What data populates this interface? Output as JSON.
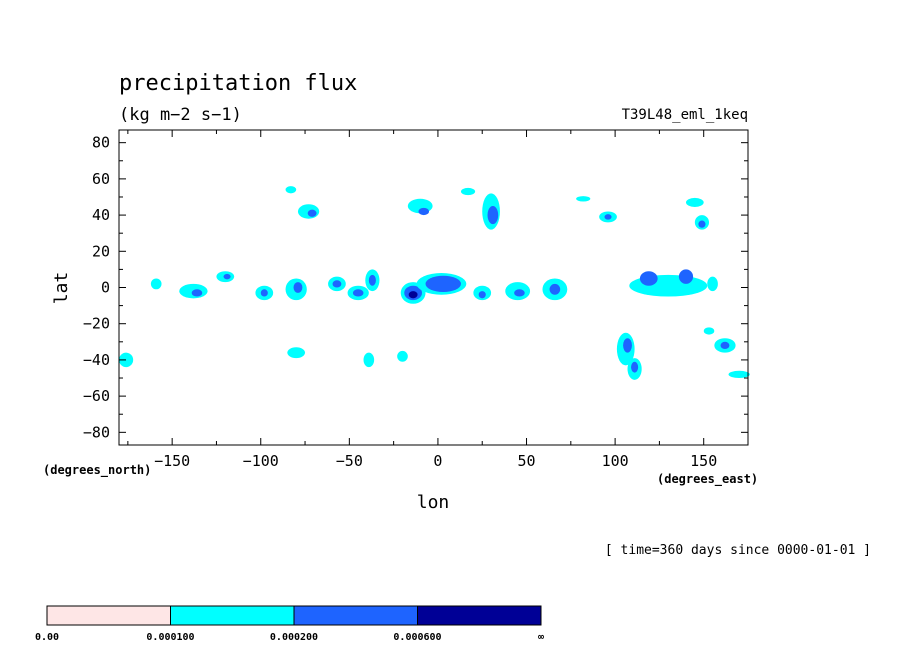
{
  "chart_data": {
    "type": "heatmap",
    "title": "precipitation flux",
    "units": "(kg m−2 s−1)",
    "dataset": "T39L48_eml_1keq",
    "xlabel": "lon",
    "ylabel": "lat",
    "x_unit": "(degrees_east)",
    "y_unit": "(degrees_north)",
    "time_label": "[ time=360 days since 0000-01-01 ]",
    "xlim": [
      -180,
      175
    ],
    "ylim": [
      -87,
      87
    ],
    "x_ticks": [
      -150,
      -100,
      -50,
      0,
      50,
      100,
      150
    ],
    "x_tick_labels": [
      "−150",
      "−100",
      "−50",
      "0",
      "50",
      "100",
      "150"
    ],
    "y_ticks": [
      80,
      60,
      40,
      20,
      0,
      -20,
      -40,
      -60,
      -80
    ],
    "y_tick_labels": [
      "80",
      "60",
      "40",
      "20",
      "0",
      "−20",
      "−40",
      "−60",
      "−80"
    ],
    "levels": [
      0.0,
      0.0001,
      0.0002,
      0.0006
    ],
    "level_labels": [
      "0.00",
      "0.000100",
      "0.000200",
      "0.000600",
      "∞"
    ],
    "level_colors": [
      "#fee6e6",
      "#00ffff",
      "#1e64ff",
      "#000096"
    ],
    "regions": [
      {
        "lon": -176,
        "lat": -40,
        "rlon": 4,
        "rlat": 4,
        "level": 1
      },
      {
        "lon": -159,
        "lat": 2,
        "rlon": 3,
        "rlat": 3,
        "level": 1
      },
      {
        "lon": -138,
        "lat": -2,
        "rlon": 8,
        "rlat": 4,
        "level": 1
      },
      {
        "lon": -136,
        "lat": -3,
        "rlon": 3,
        "rlat": 2,
        "level": 2
      },
      {
        "lon": -120,
        "lat": 6,
        "rlon": 5,
        "rlat": 3,
        "level": 1
      },
      {
        "lon": -119,
        "lat": 6,
        "rlon": 2,
        "rlat": 1.5,
        "level": 2
      },
      {
        "lon": -98,
        "lat": -3,
        "rlon": 5,
        "rlat": 4,
        "level": 1
      },
      {
        "lon": -98,
        "lat": -3,
        "rlon": 2,
        "rlat": 2,
        "level": 2
      },
      {
        "lon": -80,
        "lat": -1,
        "rlon": 6,
        "rlat": 6,
        "level": 1
      },
      {
        "lon": -79,
        "lat": 0,
        "rlon": 2.5,
        "rlat": 3,
        "level": 2
      },
      {
        "lon": -73,
        "lat": 42,
        "rlon": 6,
        "rlat": 4,
        "level": 1
      },
      {
        "lon": -71,
        "lat": 41,
        "rlon": 2.5,
        "rlat": 2,
        "level": 2
      },
      {
        "lon": -83,
        "lat": 54,
        "rlon": 3,
        "rlat": 2,
        "level": 1
      },
      {
        "lon": -57,
        "lat": 2,
        "rlon": 5,
        "rlat": 4,
        "level": 1
      },
      {
        "lon": -57,
        "lat": 2,
        "rlon": 2.5,
        "rlat": 2,
        "level": 2
      },
      {
        "lon": -45,
        "lat": -3,
        "rlon": 6,
        "rlat": 4,
        "level": 1
      },
      {
        "lon": -45,
        "lat": -3,
        "rlon": 3,
        "rlat": 2,
        "level": 2
      },
      {
        "lon": -37,
        "lat": 4,
        "rlon": 4,
        "rlat": 6,
        "level": 1
      },
      {
        "lon": -37,
        "lat": 4,
        "rlon": 2,
        "rlat": 3,
        "level": 2
      },
      {
        "lon": -80,
        "lat": -36,
        "rlon": 5,
        "rlat": 3,
        "level": 1
      },
      {
        "lon": -39,
        "lat": -40,
        "rlon": 3,
        "rlat": 4,
        "level": 1
      },
      {
        "lon": -20,
        "lat": -38,
        "rlon": 3,
        "rlat": 3,
        "level": 1
      },
      {
        "lon": -14,
        "lat": -3,
        "rlon": 7,
        "rlat": 6,
        "level": 1
      },
      {
        "lon": -14,
        "lat": -3,
        "rlon": 5,
        "rlat": 4,
        "level": 2
      },
      {
        "lon": -14,
        "lat": -4,
        "rlon": 2.5,
        "rlat": 2,
        "level": 3
      },
      {
        "lon": 2,
        "lat": 2,
        "rlon": 14,
        "rlat": 6,
        "level": 1
      },
      {
        "lon": 3,
        "lat": 2,
        "rlon": 10,
        "rlat": 4.5,
        "level": 2
      },
      {
        "lon": -10,
        "lat": 45,
        "rlon": 7,
        "rlat": 4,
        "level": 1
      },
      {
        "lon": -8,
        "lat": 42,
        "rlon": 3,
        "rlat": 2,
        "level": 2
      },
      {
        "lon": 30,
        "lat": 42,
        "rlon": 5,
        "rlat": 10,
        "level": 1
      },
      {
        "lon": 31,
        "lat": 40,
        "rlon": 3,
        "rlat": 5,
        "level": 2
      },
      {
        "lon": 17,
        "lat": 53,
        "rlon": 4,
        "rlat": 2,
        "level": 1
      },
      {
        "lon": 25,
        "lat": -3,
        "rlon": 5,
        "rlat": 4,
        "level": 1
      },
      {
        "lon": 25,
        "lat": -4,
        "rlon": 2,
        "rlat": 2,
        "level": 2
      },
      {
        "lon": 45,
        "lat": -2,
        "rlon": 7,
        "rlat": 5,
        "level": 1
      },
      {
        "lon": 46,
        "lat": -3,
        "rlon": 3,
        "rlat": 2,
        "level": 2
      },
      {
        "lon": 66,
        "lat": -1,
        "rlon": 7,
        "rlat": 6,
        "level": 1
      },
      {
        "lon": 66,
        "lat": -1,
        "rlon": 3,
        "rlat": 3,
        "level": 2
      },
      {
        "lon": 96,
        "lat": 39,
        "rlon": 5,
        "rlat": 3,
        "level": 1
      },
      {
        "lon": 96,
        "lat": 39,
        "rlon": 2,
        "rlat": 1.5,
        "level": 2
      },
      {
        "lon": 82,
        "lat": 49,
        "rlon": 4,
        "rlat": 1.5,
        "level": 1
      },
      {
        "lon": 106,
        "lat": -34,
        "rlon": 5,
        "rlat": 9,
        "level": 1
      },
      {
        "lon": 107,
        "lat": -32,
        "rlon": 2.5,
        "rlat": 4,
        "level": 2
      },
      {
        "lon": 111,
        "lat": -45,
        "rlon": 4,
        "rlat": 6,
        "level": 1
      },
      {
        "lon": 111,
        "lat": -44,
        "rlon": 2,
        "rlat": 3,
        "level": 2
      },
      {
        "lon": 130,
        "lat": 1,
        "rlon": 22,
        "rlat": 6,
        "level": 1
      },
      {
        "lon": 119,
        "lat": 5,
        "rlon": 5,
        "rlat": 4,
        "level": 2
      },
      {
        "lon": 140,
        "lat": 6,
        "rlon": 4,
        "rlat": 4,
        "level": 2
      },
      {
        "lon": 145,
        "lat": 47,
        "rlon": 5,
        "rlat": 2.5,
        "level": 1
      },
      {
        "lon": 149,
        "lat": 36,
        "rlon": 4,
        "rlat": 4,
        "level": 1
      },
      {
        "lon": 149,
        "lat": 35,
        "rlon": 2,
        "rlat": 2,
        "level": 2
      },
      {
        "lon": 155,
        "lat": 2,
        "rlon": 3,
        "rlat": 4,
        "level": 1
      },
      {
        "lon": 162,
        "lat": -32,
        "rlon": 6,
        "rlat": 4,
        "level": 1
      },
      {
        "lon": 162,
        "lat": -32,
        "rlon": 2.5,
        "rlat": 2,
        "level": 2
      },
      {
        "lon": 170,
        "lat": -48,
        "rlon": 6,
        "rlat": 2,
        "level": 1
      },
      {
        "lon": 153,
        "lat": -24,
        "rlon": 3,
        "rlat": 2,
        "level": 1
      }
    ]
  }
}
